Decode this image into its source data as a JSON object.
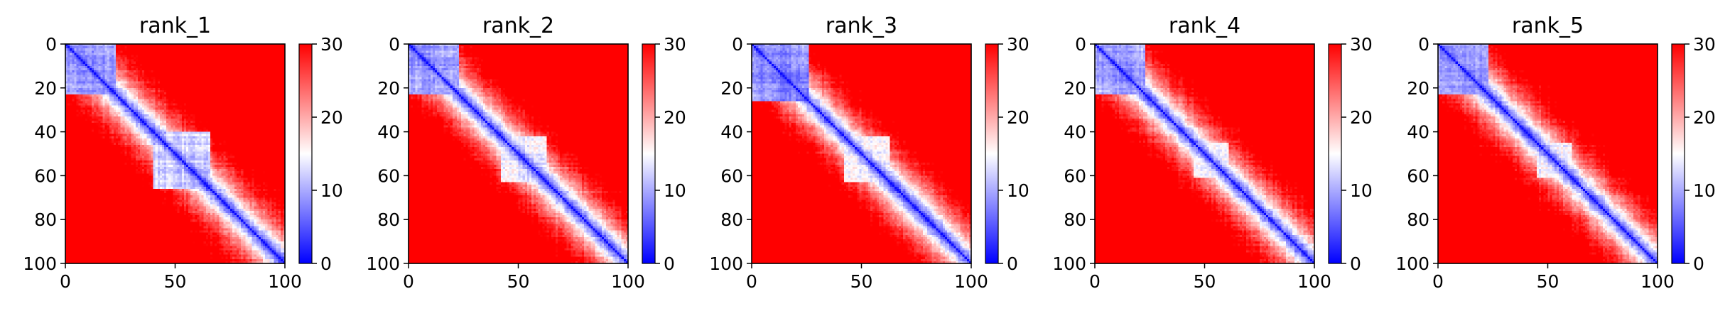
{
  "chart_data": [
    {
      "type": "heatmap",
      "title": "rank_1",
      "x_ticks": [
        "0",
        "50",
        "100"
      ],
      "y_ticks": [
        "0",
        "20",
        "40",
        "60",
        "80",
        "100"
      ],
      "xlim": [
        0,
        100
      ],
      "ylim": [
        100,
        0
      ],
      "colormap": "bwr",
      "colorbar": {
        "range": [
          0,
          30
        ],
        "ticks": [
          "0",
          "10",
          "20",
          "30"
        ]
      },
      "domains": [
        {
          "range": [
            0,
            22
          ],
          "value": 8
        },
        {
          "range": [
            40,
            65
          ],
          "value": 11
        }
      ]
    },
    {
      "type": "heatmap",
      "title": "rank_2",
      "x_ticks": [
        "0",
        "50",
        "100"
      ],
      "y_ticks": [
        "0",
        "20",
        "40",
        "60",
        "80",
        "100"
      ],
      "xlim": [
        0,
        100
      ],
      "ylim": [
        100,
        0
      ],
      "colormap": "bwr",
      "colorbar": {
        "range": [
          0,
          30
        ],
        "ticks": [
          "0",
          "10",
          "20",
          "30"
        ]
      },
      "domains": [
        {
          "range": [
            0,
            22
          ],
          "value": 8
        },
        {
          "range": [
            42,
            62
          ],
          "value": 13
        }
      ]
    },
    {
      "type": "heatmap",
      "title": "rank_3",
      "x_ticks": [
        "0",
        "50",
        "100"
      ],
      "y_ticks": [
        "0",
        "20",
        "40",
        "60",
        "80",
        "100"
      ],
      "xlim": [
        0,
        100
      ],
      "ylim": [
        100,
        0
      ],
      "colormap": "bwr",
      "colorbar": {
        "range": [
          0,
          30
        ],
        "ticks": [
          "0",
          "10",
          "20",
          "30"
        ]
      },
      "domains": [
        {
          "range": [
            0,
            25
          ],
          "value": 7
        },
        {
          "range": [
            42,
            62
          ],
          "value": 13
        }
      ]
    },
    {
      "type": "heatmap",
      "title": "rank_4",
      "x_ticks": [
        "0",
        "50",
        "100"
      ],
      "y_ticks": [
        "0",
        "20",
        "40",
        "60",
        "80",
        "100"
      ],
      "xlim": [
        0,
        100
      ],
      "ylim": [
        100,
        0
      ],
      "colormap": "bwr",
      "colorbar": {
        "range": [
          0,
          30
        ],
        "ticks": [
          "0",
          "10",
          "20",
          "30"
        ]
      },
      "domains": [
        {
          "range": [
            0,
            22
          ],
          "value": 8
        },
        {
          "range": [
            45,
            60
          ],
          "value": 13
        }
      ]
    },
    {
      "type": "heatmap",
      "title": "rank_5",
      "x_ticks": [
        "0",
        "50",
        "100"
      ],
      "y_ticks": [
        "0",
        "20",
        "40",
        "60",
        "80",
        "100"
      ],
      "xlim": [
        0,
        100
      ],
      "ylim": [
        100,
        0
      ],
      "colormap": "bwr",
      "colorbar": {
        "range": [
          0,
          30
        ],
        "ticks": [
          "0",
          "10",
          "20",
          "30"
        ]
      },
      "domains": [
        {
          "range": [
            0,
            22
          ],
          "value": 8
        },
        {
          "range": [
            45,
            60
          ],
          "value": 13
        }
      ]
    }
  ]
}
